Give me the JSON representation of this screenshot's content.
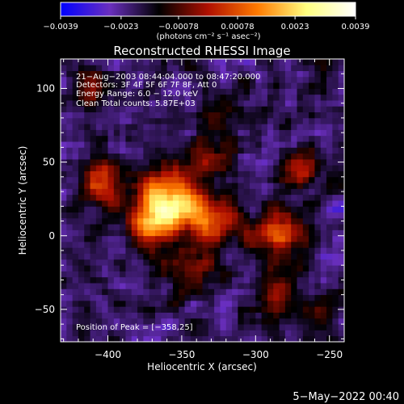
{
  "chart_data": {
    "type": "heatmap",
    "title": "Reconstructed RHESSI Image",
    "xlabel": "Heliocentric X (arcsec)",
    "ylabel": "Heliocentric Y (arcsec)",
    "xlim": [
      -432,
      -240
    ],
    "ylim": [
      -72,
      120
    ],
    "x_ticks": [
      -400,
      -350,
      -300,
      -250
    ],
    "x_tick_labels": [
      "−400",
      "−350",
      "−300",
      "−250"
    ],
    "y_ticks": [
      -50,
      0,
      50,
      100
    ],
    "y_tick_labels": [
      "−50",
      "0",
      "50",
      "100"
    ],
    "colorbar": {
      "ticks": [
        -0.0039,
        -0.0023,
        -0.00078,
        0.00078,
        0.0023,
        0.0039
      ],
      "tick_labels": [
        "−0.0039",
        "−0.0023",
        "−0.00078",
        "0.00078",
        "0.0023",
        "0.0039"
      ],
      "range": [
        -0.0039,
        0.0039
      ],
      "colors": [
        "#0000ff",
        "#6a2fbf",
        "#000000",
        "#b01000",
        "#ff7a00",
        "#ffff80",
        "#ffffff"
      ]
    },
    "colorbar_units": "(photons cm⁻² s⁻¹ asec⁻²)",
    "annotations": [
      "21−Aug−2003 08:44:04.000 to 08:47:20.000",
      "Detectors: 3F 4F 5F 6F 7F 8F, Att 0",
      "Energy Range: 6.0 − 12.0 keV",
      "Clean     Total counts: 5.87E+03"
    ],
    "peak_label": "Position of Peak = [−358,25]",
    "peak": [
      -358,
      25
    ],
    "sources": [
      {
        "x": -358,
        "y": 25,
        "amp": 0.0039,
        "sigma": 14
      },
      {
        "x": -372,
        "y": 8,
        "amp": 0.0029,
        "sigma": 12
      },
      {
        "x": -405,
        "y": 35,
        "amp": 0.0024,
        "sigma": 10
      },
      {
        "x": -330,
        "y": 10,
        "amp": 0.0024,
        "sigma": 14
      },
      {
        "x": -330,
        "y": 55,
        "amp": 0.0017,
        "sigma": 10
      },
      {
        "x": -285,
        "y": 2,
        "amp": 0.0026,
        "sigma": 12
      },
      {
        "x": -270,
        "y": 45,
        "amp": 0.0019,
        "sigma": 10
      },
      {
        "x": -410,
        "y": 100,
        "amp": 0.0015,
        "sigma": 10
      },
      {
        "x": -320,
        "y": 85,
        "amp": 0.0012,
        "sigma": 10
      },
      {
        "x": -345,
        "y": -30,
        "amp": 0.0013,
        "sigma": 12
      },
      {
        "x": -285,
        "y": -40,
        "amp": 0.0012,
        "sigma": 11
      },
      {
        "x": -255,
        "y": -50,
        "amp": 0.0011,
        "sigma": 9
      }
    ],
    "background_minimum": -0.002,
    "noise_amplitude": 0.0012,
    "grid": false
  },
  "footer_date": "5−May−2022 00:40"
}
